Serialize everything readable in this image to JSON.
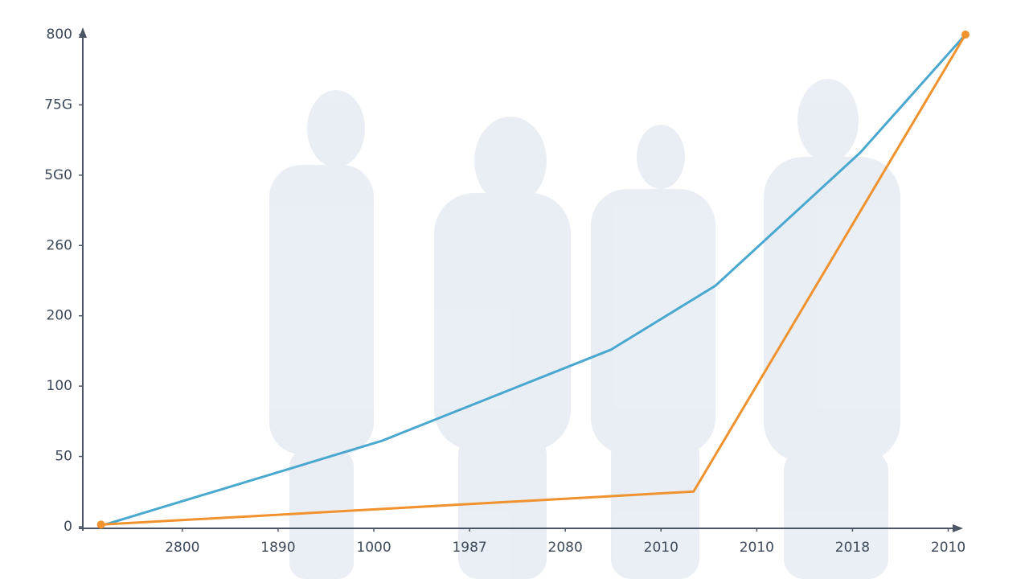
{
  "chart_data": {
    "type": "line",
    "xlim": [
      -1.04,
      8.13
    ],
    "xticks": [
      {
        "value": 0,
        "label": "2800"
      },
      {
        "value": 1,
        "label": "1890"
      },
      {
        "value": 2,
        "label": "1000"
      },
      {
        "value": 3,
        "label": "1987"
      },
      {
        "value": 4,
        "label": "2080"
      },
      {
        "value": 5,
        "label": "2010"
      },
      {
        "value": 6,
        "label": "2010"
      },
      {
        "value": 7,
        "label": "2018"
      },
      {
        "value": 8,
        "label": "2010"
      }
    ],
    "ylim": [
      0,
      7
    ],
    "yticks": [
      {
        "value": 0,
        "label": "0"
      },
      {
        "value": 1,
        "label": "50"
      },
      {
        "value": 2,
        "label": "100"
      },
      {
        "value": 3,
        "label": "200"
      },
      {
        "value": 4,
        "label": "260"
      },
      {
        "value": 5,
        "label": "5G0"
      },
      {
        "value": 6,
        "label": "75G"
      },
      {
        "value": 7,
        "label": "800"
      }
    ],
    "series": [
      {
        "color": "#4aa8d0",
        "x": [
          -0.81,
          2.08,
          4.48,
          5.57,
          7.08,
          8.18
        ],
        "values": [
          0.03,
          1.22,
          2.52,
          3.43,
          5.32,
          7.0
        ],
        "markers": false
      },
      {
        "color": "#f0922e",
        "x": [
          -0.85,
          5.34,
          8.18
        ],
        "values": [
          0.03,
          0.5,
          7.0
        ],
        "markers": true
      }
    ]
  }
}
